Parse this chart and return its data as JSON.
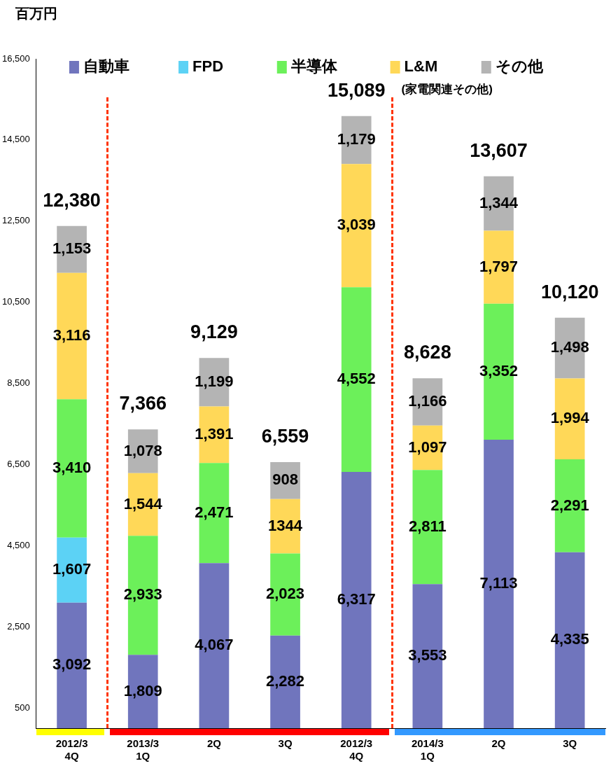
{
  "chart_data": {
    "type": "bar",
    "stacked": true,
    "ylabel": "百万円",
    "legend": "top",
    "grid": false,
    "categories": [
      "2012/3\n4Q",
      "2013/3\n1Q",
      "2Q",
      "3Q",
      "2012/3\n4Q",
      "2014/3\n1Q",
      "2Q",
      "3Q"
    ],
    "ylim": [
      0,
      16500
    ],
    "yticks": [
      500,
      {
        "value": 2500,
        "label": "2,500"
      },
      {
        "value": 4500,
        "label": "4,500"
      },
      {
        "value": 6500,
        "label": "6,500"
      },
      {
        "value": 8500,
        "label": "8,500"
      },
      {
        "value": 10500,
        "label": "10,500"
      },
      {
        "value": 12500,
        "label": "12,500"
      },
      {
        "value": 14500,
        "label": "14,500"
      },
      {
        "value": 16500,
        "label": "16,500"
      }
    ],
    "series": [
      {
        "name": "自動車",
        "color": "#7075bd",
        "values": [
          3092,
          1809,
          4067,
          2282,
          6317,
          3553,
          7113,
          4335
        ],
        "value_labels": [
          "3,092",
          "1,809",
          "4,067",
          "2,282",
          "6,317",
          "3,553",
          "7,113",
          "4,335"
        ]
      },
      {
        "name": "FPD",
        "color": "#5cd2f5",
        "values": [
          1607,
          null,
          null,
          null,
          null,
          null,
          null,
          null
        ],
        "value_labels": [
          "1,607",
          null,
          null,
          null,
          null,
          null,
          null,
          null
        ]
      },
      {
        "name": "半導体",
        "color": "#6cf05a",
        "values": [
          3410,
          2933,
          2471,
          2023,
          4552,
          2811,
          3352,
          2291
        ],
        "value_labels": [
          "3,410",
          "2,933",
          "2,471",
          "2,023",
          "4,552",
          "2,811",
          "3,352",
          "2,291"
        ]
      },
      {
        "name": "L&M",
        "color": "#ffd858",
        "values": [
          3116,
          1544,
          1391,
          1344,
          3039,
          1097,
          1797,
          1994
        ],
        "value_labels": [
          "3,116",
          "1,544",
          "1,391",
          "1344",
          "3,039",
          "1,097",
          "1,797",
          "1,994"
        ]
      },
      {
        "name": "その他",
        "color": "#b4b4b4",
        "values": [
          1153,
          1078,
          1199,
          908,
          1179,
          1166,
          1344,
          1498
        ],
        "value_labels": [
          "1,153",
          "1,078",
          "1,199",
          "908",
          "1,179",
          "1,166",
          "1,344",
          "1,498"
        ]
      }
    ],
    "totals": [
      "12,380",
      "7,366",
      "9,129",
      "6,559",
      "15,089",
      "8,628",
      "13,607",
      "10,120"
    ],
    "annotations": [
      "(家電関連その他)"
    ]
  }
}
